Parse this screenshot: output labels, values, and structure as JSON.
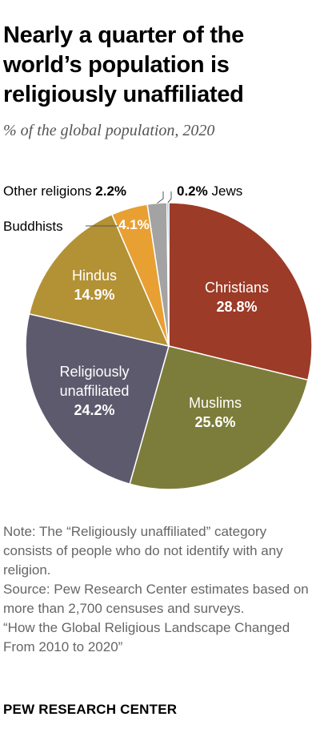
{
  "title": "Nearly a quarter of the world’s population is religiously unaffiliated",
  "subtitle": "% of the global population, 2020",
  "chart_data": {
    "type": "pie",
    "title": "Nearly a quarter of the world’s population is religiously unaffiliated",
    "subtitle": "% of the global population, 2020",
    "unit": "%",
    "slices": [
      {
        "label": "Christians",
        "value": 28.8,
        "value_label": "28.8%",
        "color": "#9c3b27"
      },
      {
        "label": "Muslims",
        "value": 25.6,
        "value_label": "25.6%",
        "color": "#7d7d3b"
      },
      {
        "label": "Religiously unaffiliated",
        "value": 24.2,
        "value_label": "24.2%",
        "color": "#5e5a6e"
      },
      {
        "label": "Hindus",
        "value": 14.9,
        "value_label": "14.9%",
        "color": "#b39135"
      },
      {
        "label": "Buddhists",
        "value": 4.1,
        "value_label": "4.1%",
        "color": "#e8a033"
      },
      {
        "label": "Other religions",
        "value": 2.2,
        "value_label": "2.2%",
        "color": "#a3a3a3"
      },
      {
        "label": "Jews",
        "value": 0.2,
        "value_label": "0.2%",
        "color": "#3b8fcf"
      }
    ]
  },
  "notes": {
    "note": "Note: The “Religiously unaffiliated” category consists of people who do not identify with any religion.",
    "source": "Source: Pew Research Center estimates based on more than 2,700 censuses and surveys.",
    "report": "“How the Global Religious Landscape Changed From 2010 to 2020”"
  },
  "brand": "PEW RESEARCH CENTER"
}
